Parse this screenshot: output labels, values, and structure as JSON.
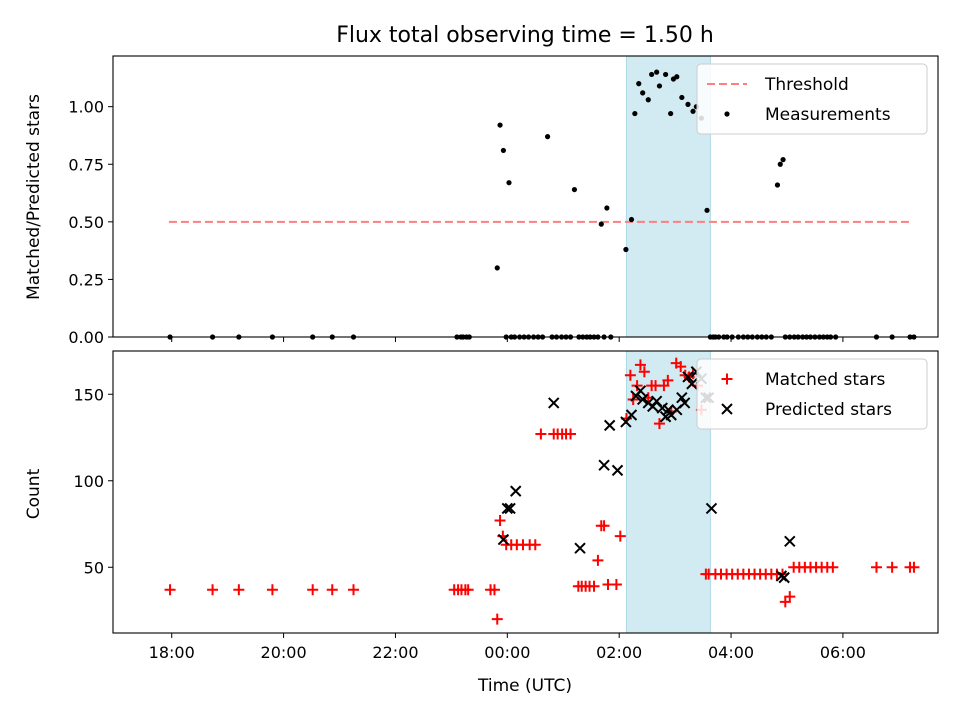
{
  "title": "Flux total observing time = 1.50 h",
  "chart_data": [
    {
      "type": "scatter",
      "panel": "top",
      "ylabel": "Matched/Predicted stars",
      "xlabel": "",
      "ylim": [
        0,
        1.22
      ],
      "yticks": [
        0.0,
        0.25,
        0.5,
        0.75,
        1.0
      ],
      "ytick_labels": [
        "0.00",
        "0.25",
        "0.50",
        "0.75",
        "1.00"
      ],
      "shaded_region": {
        "x_start_h": 26.13,
        "x_end_h": 27.63,
        "color": "#add8e6"
      },
      "legend_position": "top-right",
      "series": [
        {
          "name": "Threshold",
          "kind": "dashed-line",
          "color": "#ff7f7f",
          "x_h": [
            17.95,
            31.25
          ],
          "y": [
            0.5,
            0.5
          ]
        },
        {
          "name": "Measurements",
          "kind": "points",
          "color": "#000000",
          "x_h": [
            17.97,
            18.73,
            19.2,
            19.8,
            20.52,
            20.87,
            21.25,
            23.1,
            23.17,
            23.21,
            23.27,
            23.32,
            23.82,
            23.87,
            23.93,
            23.98,
            24.03,
            24.07,
            24.13,
            24.22,
            24.3,
            24.38,
            24.47,
            24.55,
            24.63,
            24.72,
            24.8,
            24.88,
            24.97,
            25.05,
            25.13,
            25.2,
            25.28,
            25.35,
            25.42,
            25.48,
            25.55,
            25.62,
            25.68,
            25.73,
            25.78,
            25.85,
            26.12,
            26.22,
            26.28,
            26.35,
            26.42,
            26.52,
            26.58,
            26.67,
            26.72,
            26.83,
            26.92,
            26.97,
            27.03,
            27.12,
            27.23,
            27.32,
            27.38,
            27.47,
            27.57,
            27.63,
            27.68,
            27.72,
            27.78,
            27.87,
            27.93,
            28.02,
            28.13,
            28.22,
            28.3,
            28.38,
            28.47,
            28.55,
            28.63,
            28.72,
            28.83,
            28.88,
            28.93,
            28.97,
            29.05,
            29.13,
            29.2,
            29.28,
            29.35,
            29.42,
            29.5,
            29.58,
            29.65,
            29.72,
            29.78,
            29.87,
            30.6,
            30.88,
            31.2,
            31.27
          ],
          "y": [
            0,
            0,
            0,
            0,
            0,
            0,
            0,
            0,
            0,
            0,
            0,
            0,
            0.3,
            0.92,
            0.81,
            0,
            0.67,
            0,
            0,
            0,
            0,
            0,
            0,
            0,
            0,
            0.87,
            0,
            0,
            0,
            0,
            0,
            0.64,
            0,
            0,
            0,
            0,
            0,
            0,
            0.49,
            0,
            0.56,
            0,
            0.38,
            0.51,
            0.97,
            1.1,
            1.06,
            1.03,
            1.14,
            1.15,
            1.09,
            1.14,
            0.97,
            1.12,
            1.13,
            1.04,
            1.01,
            0.98,
            1.0,
            0.95,
            0.55,
            0,
            0,
            0,
            0,
            0,
            0,
            0,
            0,
            0,
            0,
            0,
            0,
            0,
            0,
            0,
            0.66,
            0.75,
            0.77,
            0,
            0,
            0,
            0,
            0,
            0,
            0,
            0,
            0,
            0,
            0,
            0,
            0,
            0,
            0,
            0,
            0
          ]
        }
      ]
    },
    {
      "type": "scatter",
      "panel": "bottom",
      "ylabel": "Count",
      "xlabel": "Time (UTC)",
      "ylim": [
        12,
        175
      ],
      "yticks": [
        50,
        100,
        150
      ],
      "ytick_labels": [
        "50",
        "100",
        "150"
      ],
      "xlim_h": [
        16.95,
        31.7
      ],
      "xticks_h": [
        18,
        20,
        22,
        24,
        26,
        28,
        30
      ],
      "xtick_labels": [
        "18:00",
        "20:00",
        "22:00",
        "00:00",
        "02:00",
        "04:00",
        "06:00"
      ],
      "shaded_region": {
        "x_start_h": 26.13,
        "x_end_h": 27.63,
        "color": "#add8e6"
      },
      "legend_position": "top-right",
      "series": [
        {
          "name": "Matched stars",
          "kind": "plus-markers",
          "color": "#ff0000",
          "x_h": [
            17.97,
            18.73,
            19.2,
            19.8,
            20.52,
            20.87,
            21.25,
            23.05,
            23.12,
            23.18,
            23.25,
            23.3,
            23.7,
            23.77,
            23.82,
            23.87,
            23.92,
            23.98,
            24.07,
            24.17,
            24.28,
            24.4,
            24.5,
            24.6,
            24.83,
            24.9,
            24.98,
            25.05,
            25.13,
            25.27,
            25.33,
            25.4,
            25.47,
            25.55,
            25.62,
            25.68,
            25.73,
            25.8,
            25.95,
            26.02,
            26.13,
            26.2,
            26.25,
            26.32,
            26.38,
            26.45,
            26.52,
            26.58,
            26.65,
            26.72,
            26.8,
            26.87,
            26.93,
            27.02,
            27.1,
            27.18,
            27.25,
            27.32,
            27.4,
            27.47,
            27.55,
            27.6,
            27.72,
            27.82,
            27.92,
            28.02,
            28.12,
            28.22,
            28.32,
            28.42,
            28.52,
            28.62,
            28.72,
            28.82,
            28.92,
            28.97,
            29.05,
            29.12,
            29.22,
            29.32,
            29.42,
            29.52,
            29.62,
            29.72,
            29.82,
            30.6,
            30.88,
            31.2,
            31.27
          ],
          "y": [
            37,
            37,
            37,
            37,
            37,
            37,
            37,
            37,
            37,
            37,
            37,
            37,
            37,
            37,
            20,
            77,
            68,
            63,
            63,
            63,
            63,
            63,
            63,
            127,
            127,
            127,
            127,
            127,
            127,
            39,
            39,
            39,
            39,
            39,
            54,
            74,
            74,
            40,
            40,
            68,
            136,
            161,
            147,
            155,
            167,
            163,
            148,
            155,
            155,
            133,
            155,
            158,
            140,
            168,
            166,
            161,
            160,
            162,
            155,
            141,
            46,
            46,
            46,
            46,
            46,
            46,
            46,
            46,
            46,
            46,
            46,
            46,
            46,
            46,
            46,
            30,
            33,
            50,
            50,
            50,
            50,
            50,
            50,
            50,
            50,
            50,
            50,
            50,
            50
          ]
        },
        {
          "name": "Predicted stars",
          "kind": "x-markers",
          "color": "#000000",
          "x_h": [
            23.93,
            24.0,
            24.05,
            24.15,
            24.83,
            25.3,
            25.73,
            25.83,
            25.97,
            26.12,
            26.22,
            26.3,
            26.38,
            26.42,
            26.52,
            26.6,
            26.67,
            26.77,
            26.83,
            26.88,
            26.93,
            27.03,
            27.12,
            27.17,
            27.23,
            27.3,
            27.38,
            27.47,
            27.55,
            27.6,
            27.65,
            28.9,
            28.95,
            29.05
          ],
          "y": [
            66,
            84,
            84,
            94,
            145,
            61,
            109,
            132,
            106,
            134,
            138,
            149,
            152,
            147,
            145,
            143,
            146,
            142,
            137,
            141,
            138,
            141,
            148,
            145,
            160,
            156,
            163,
            159,
            148,
            148,
            84,
            45,
            44,
            65
          ]
        }
      ]
    }
  ]
}
